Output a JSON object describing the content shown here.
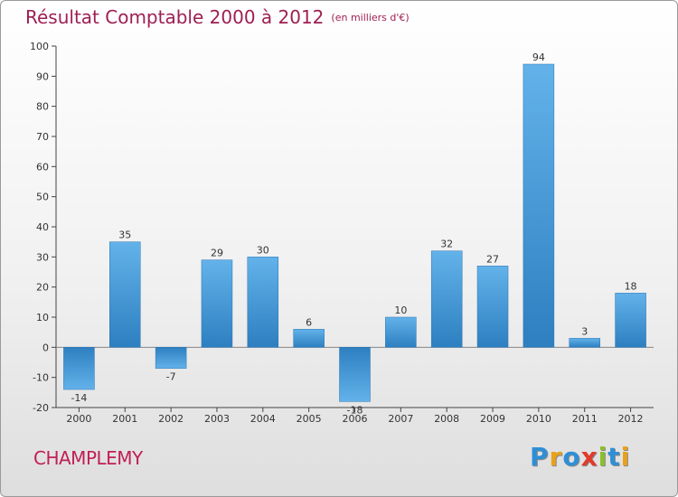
{
  "header": {
    "title": "Résultat Comptable 2000 à 2012",
    "unit": "(en milliers d'€)"
  },
  "footer": {
    "commune": "CHAMPLEMY",
    "logo_letters": [
      "P",
      "r",
      "o",
      "x",
      "i",
      "t",
      "i"
    ],
    "logo_colors": [
      "#2f8fd6",
      "#e8a21a",
      "#2f8fd6",
      "#e23b2a",
      "#8bbf2b",
      "#2f8fd6",
      "#e8a21a"
    ]
  },
  "chart_data": {
    "type": "bar",
    "title": "Résultat Comptable 2000 à 2012",
    "xlabel": "",
    "ylabel": "",
    "categories": [
      "2000",
      "2001",
      "2002",
      "2003",
      "2004",
      "2005",
      "2006",
      "2007",
      "2008",
      "2009",
      "2010",
      "2011",
      "2012"
    ],
    "values": [
      -14,
      35,
      -7,
      29,
      30,
      6,
      -18,
      10,
      32,
      27,
      94,
      3,
      18
    ],
    "ylim": [
      -20,
      100
    ],
    "yticks": [
      -20,
      -10,
      0,
      10,
      20,
      30,
      40,
      50,
      60,
      70,
      80,
      90,
      100
    ],
    "grid": false,
    "colors": {
      "bar_light": "#63b2ea",
      "bar_dark": "#2d7fc0",
      "axis": "#444444",
      "label": "#333333"
    }
  }
}
